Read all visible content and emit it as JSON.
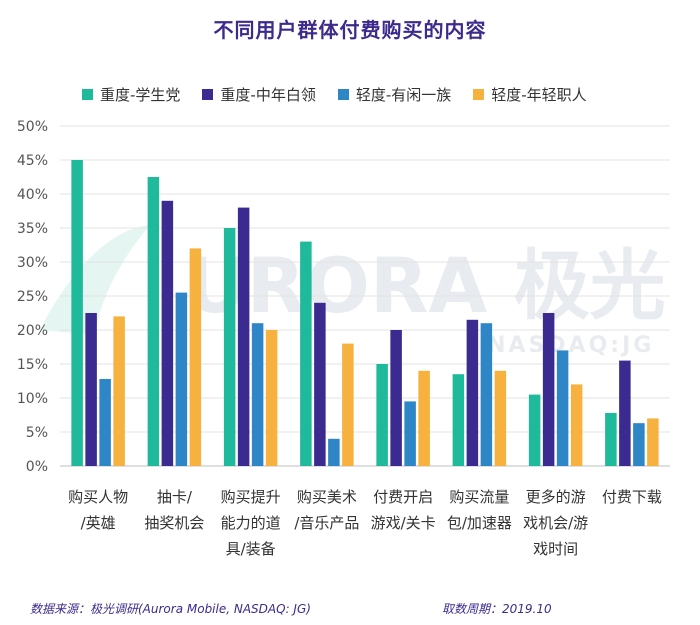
{
  "chart_data": {
    "type": "bar",
    "title": "不同用户群体付费购买的内容",
    "categories": [
      [
        "购买人物",
        "/英雄"
      ],
      [
        "抽卡/",
        "抽奖机会"
      ],
      [
        "购买提升",
        "能力的道",
        "具/装备"
      ],
      [
        "购买美术",
        "/音乐产品"
      ],
      [
        "付费开启",
        "游戏/关卡"
      ],
      [
        "购买流量",
        "包/加速器"
      ],
      [
        "更多的游",
        "戏机会/游",
        "戏时间"
      ],
      [
        "付费下载"
      ]
    ],
    "series": [
      {
        "name": "重度-学生党",
        "color": "#1fb99b",
        "values": [
          45,
          42.5,
          35,
          33,
          15,
          13.5,
          10.5,
          7.8
        ]
      },
      {
        "name": "重度-中年白领",
        "color": "#3b2a8f",
        "values": [
          22.5,
          39,
          38,
          24,
          20,
          21.5,
          22.5,
          15.5
        ]
      },
      {
        "name": "轻度-有闲一族",
        "color": "#2f86c6",
        "values": [
          12.8,
          25.5,
          21,
          4,
          9.5,
          21,
          17,
          6.3
        ]
      },
      {
        "name": "轻度-年轻职人",
        "color": "#f7b13f",
        "values": [
          22,
          32,
          20,
          18,
          14,
          14,
          12,
          7
        ]
      }
    ],
    "ylim": [
      0,
      50
    ],
    "yticks": [
      "0%",
      "5%",
      "10%",
      "15%",
      "20%",
      "25%",
      "30%",
      "35%",
      "40%",
      "45%",
      "50%"
    ],
    "grid": true,
    "legend_position": "top"
  },
  "watermark": {
    "main": "URORA 极光",
    "sub": "NASDAQ:JG"
  },
  "footer": {
    "source": "数据来源：极光调研(Aurora Mobile, NASDAQ: JG)",
    "period": "取数周期：2019.10"
  }
}
